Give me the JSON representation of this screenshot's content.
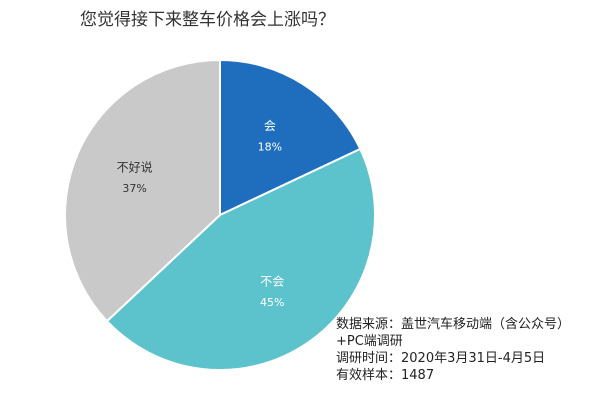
{
  "chart_data": {
    "type": "pie",
    "title": "您觉得接下来整车价格会上涨吗？",
    "categories": [
      "会",
      "不会",
      "不好说"
    ],
    "values": [
      18,
      45,
      37
    ],
    "value_labels": [
      "18%",
      "45%",
      "37%"
    ],
    "colors": [
      "#1f6ebe",
      "#5cc3cc",
      "#c9c9c9"
    ]
  },
  "note": {
    "source": "数据来源：盖世汽车移动端（含公众号）+PC端调研",
    "survey_time": "调研时间：2020年3月31日-4月5日",
    "sample": "有效样本：1487"
  }
}
